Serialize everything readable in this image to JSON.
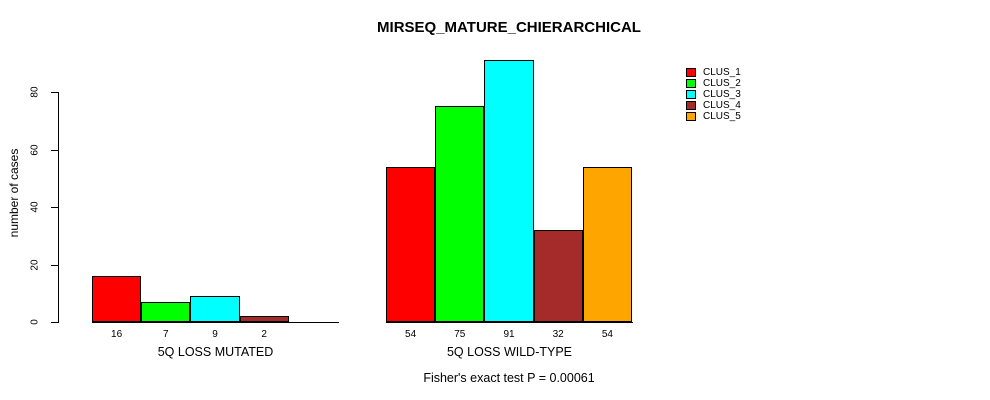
{
  "chart_data": {
    "type": "bar",
    "title": "MIRSEQ_MATURE_CHIERARCHICAL",
    "ylabel": "number of cases",
    "xlabel": "",
    "ylim": [
      0,
      92
    ],
    "yticks": [
      0,
      20,
      40,
      60,
      80
    ],
    "grid": false,
    "legend_position": "top-right",
    "series": [
      {
        "name": "CLUS_1",
        "color": "#FF0000"
      },
      {
        "name": "CLUS_2",
        "color": "#00FF00"
      },
      {
        "name": "CLUS_3",
        "color": "#00FFFF"
      },
      {
        "name": "CLUS_4",
        "color": "#A52A2A"
      },
      {
        "name": "CLUS_5",
        "color": "#FFA500"
      }
    ],
    "groups": [
      {
        "label": "5Q LOSS MUTATED",
        "values": [
          16,
          7,
          9,
          2,
          0
        ],
        "value_labels": [
          "16",
          "7",
          "9",
          "2",
          ""
        ]
      },
      {
        "label": "5Q LOSS WILD-TYPE",
        "values": [
          54,
          75,
          91,
          32,
          54
        ],
        "value_labels": [
          "54",
          "75",
          "91",
          "32",
          "54"
        ]
      }
    ],
    "annotation": "Fisher's exact test P = 0.00061",
    "axis_color": "#000000",
    "text_color": "#000000",
    "background_color": "#FFFFFF"
  }
}
